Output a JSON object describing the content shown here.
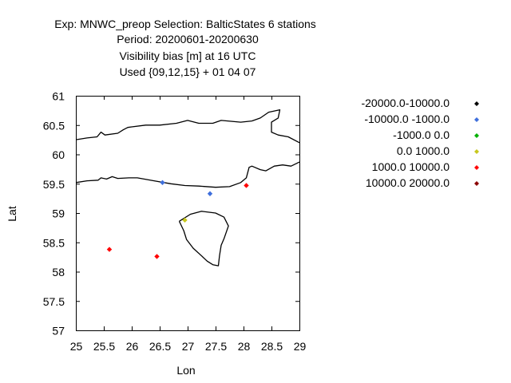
{
  "chart_data": {
    "type": "scatter",
    "title_lines": [
      "Exp: MNWC_preop   Selection: BalticStates      6 stations",
      "Period: 20200601-20200630",
      "Visibility bias [m] at  16 UTC",
      "Used {09,12,15} + 01 04 07"
    ],
    "xlabel": "Lon",
    "ylabel": "Lat",
    "xlim": [
      25,
      29
    ],
    "ylim": [
      57,
      61
    ],
    "x_ticks": [
      25,
      25.5,
      26,
      26.5,
      27,
      27.5,
      28,
      28.5,
      29
    ],
    "x_tick_labels": [
      "25",
      "25.5",
      "26",
      "26.5",
      "27",
      "27.5",
      "28",
      "28.5",
      "29"
    ],
    "y_ticks": [
      57,
      57.5,
      58,
      58.5,
      59,
      59.5,
      60,
      60.5,
      61
    ],
    "y_tick_labels": [
      "57",
      "57.5",
      "58",
      "58.5",
      "59",
      "59.5",
      "60",
      "60.5",
      "61"
    ],
    "grid": false,
    "legend_position": "right",
    "series": [
      {
        "name": "-20000.0-10000.0",
        "color": "#000000",
        "points": []
      },
      {
        "name": "-10000.0 -1000.0",
        "color": "#3f6fdc",
        "points": [
          [
            26.55,
            59.52
          ],
          [
            27.4,
            59.33
          ]
        ]
      },
      {
        "name": "-1000.0 0.0",
        "color": "#00b000",
        "points": []
      },
      {
        "name": "0.0 1000.0",
        "color": "#c8c81e",
        "points": [
          [
            26.95,
            58.88
          ]
        ]
      },
      {
        "name": "1000.0 10000.0",
        "color": "#ff0000",
        "points": [
          [
            28.05,
            59.47
          ],
          [
            25.6,
            58.38
          ],
          [
            26.45,
            58.26
          ]
        ]
      },
      {
        "name": "10000.0 20000.0",
        "color": "#8b0000",
        "points": []
      }
    ],
    "coastlines": [
      [
        [
          25.0,
          60.25
        ],
        [
          25.2,
          60.28
        ],
        [
          25.38,
          60.3
        ],
        [
          25.45,
          60.38
        ],
        [
          25.52,
          60.33
        ],
        [
          25.75,
          60.36
        ],
        [
          25.85,
          60.42
        ],
        [
          25.93,
          60.46
        ],
        [
          26.0,
          60.47
        ],
        [
          26.25,
          60.5
        ],
        [
          26.5,
          60.5
        ],
        [
          26.8,
          60.53
        ],
        [
          27.0,
          60.58
        ],
        [
          27.2,
          60.53
        ],
        [
          27.45,
          60.53
        ],
        [
          27.6,
          60.58
        ],
        [
          27.95,
          60.55
        ],
        [
          28.15,
          60.57
        ],
        [
          28.3,
          60.62
        ],
        [
          28.45,
          60.72
        ],
        [
          28.65,
          60.76
        ],
        [
          28.62,
          60.62
        ],
        [
          28.5,
          60.55
        ],
        [
          28.5,
          60.38
        ],
        [
          28.62,
          60.33
        ],
        [
          28.8,
          60.3
        ],
        [
          29.0,
          60.2
        ]
      ],
      [
        [
          25.0,
          59.52
        ],
        [
          25.2,
          59.55
        ],
        [
          25.4,
          59.56
        ],
        [
          25.45,
          59.6
        ],
        [
          25.55,
          59.58
        ],
        [
          25.65,
          59.62
        ],
        [
          25.75,
          59.59
        ],
        [
          25.95,
          59.6
        ],
        [
          26.1,
          59.6
        ],
        [
          26.4,
          59.55
        ],
        [
          26.7,
          59.5
        ],
        [
          26.95,
          59.47
        ],
        [
          27.2,
          59.46
        ],
        [
          27.5,
          59.44
        ],
        [
          27.75,
          59.45
        ],
        [
          27.95,
          59.52
        ],
        [
          28.05,
          59.6
        ],
        [
          28.1,
          59.78
        ],
        [
          28.15,
          59.8
        ],
        [
          28.3,
          59.74
        ],
        [
          28.4,
          59.72
        ],
        [
          28.55,
          59.8
        ],
        [
          28.7,
          59.82
        ],
        [
          28.85,
          59.8
        ],
        [
          29.0,
          59.87
        ]
      ],
      [
        [
          26.85,
          58.86
        ],
        [
          27.05,
          58.98
        ],
        [
          27.25,
          59.03
        ],
        [
          27.5,
          59.0
        ],
        [
          27.65,
          58.93
        ],
        [
          27.73,
          58.78
        ],
        [
          27.65,
          58.56
        ],
        [
          27.6,
          58.45
        ],
        [
          27.57,
          58.27
        ],
        [
          27.55,
          58.1
        ],
        [
          27.45,
          58.12
        ],
        [
          27.35,
          58.18
        ],
        [
          27.25,
          58.27
        ],
        [
          27.1,
          58.4
        ],
        [
          26.98,
          58.55
        ],
        [
          26.93,
          58.7
        ],
        [
          26.85,
          58.86
        ]
      ]
    ]
  }
}
